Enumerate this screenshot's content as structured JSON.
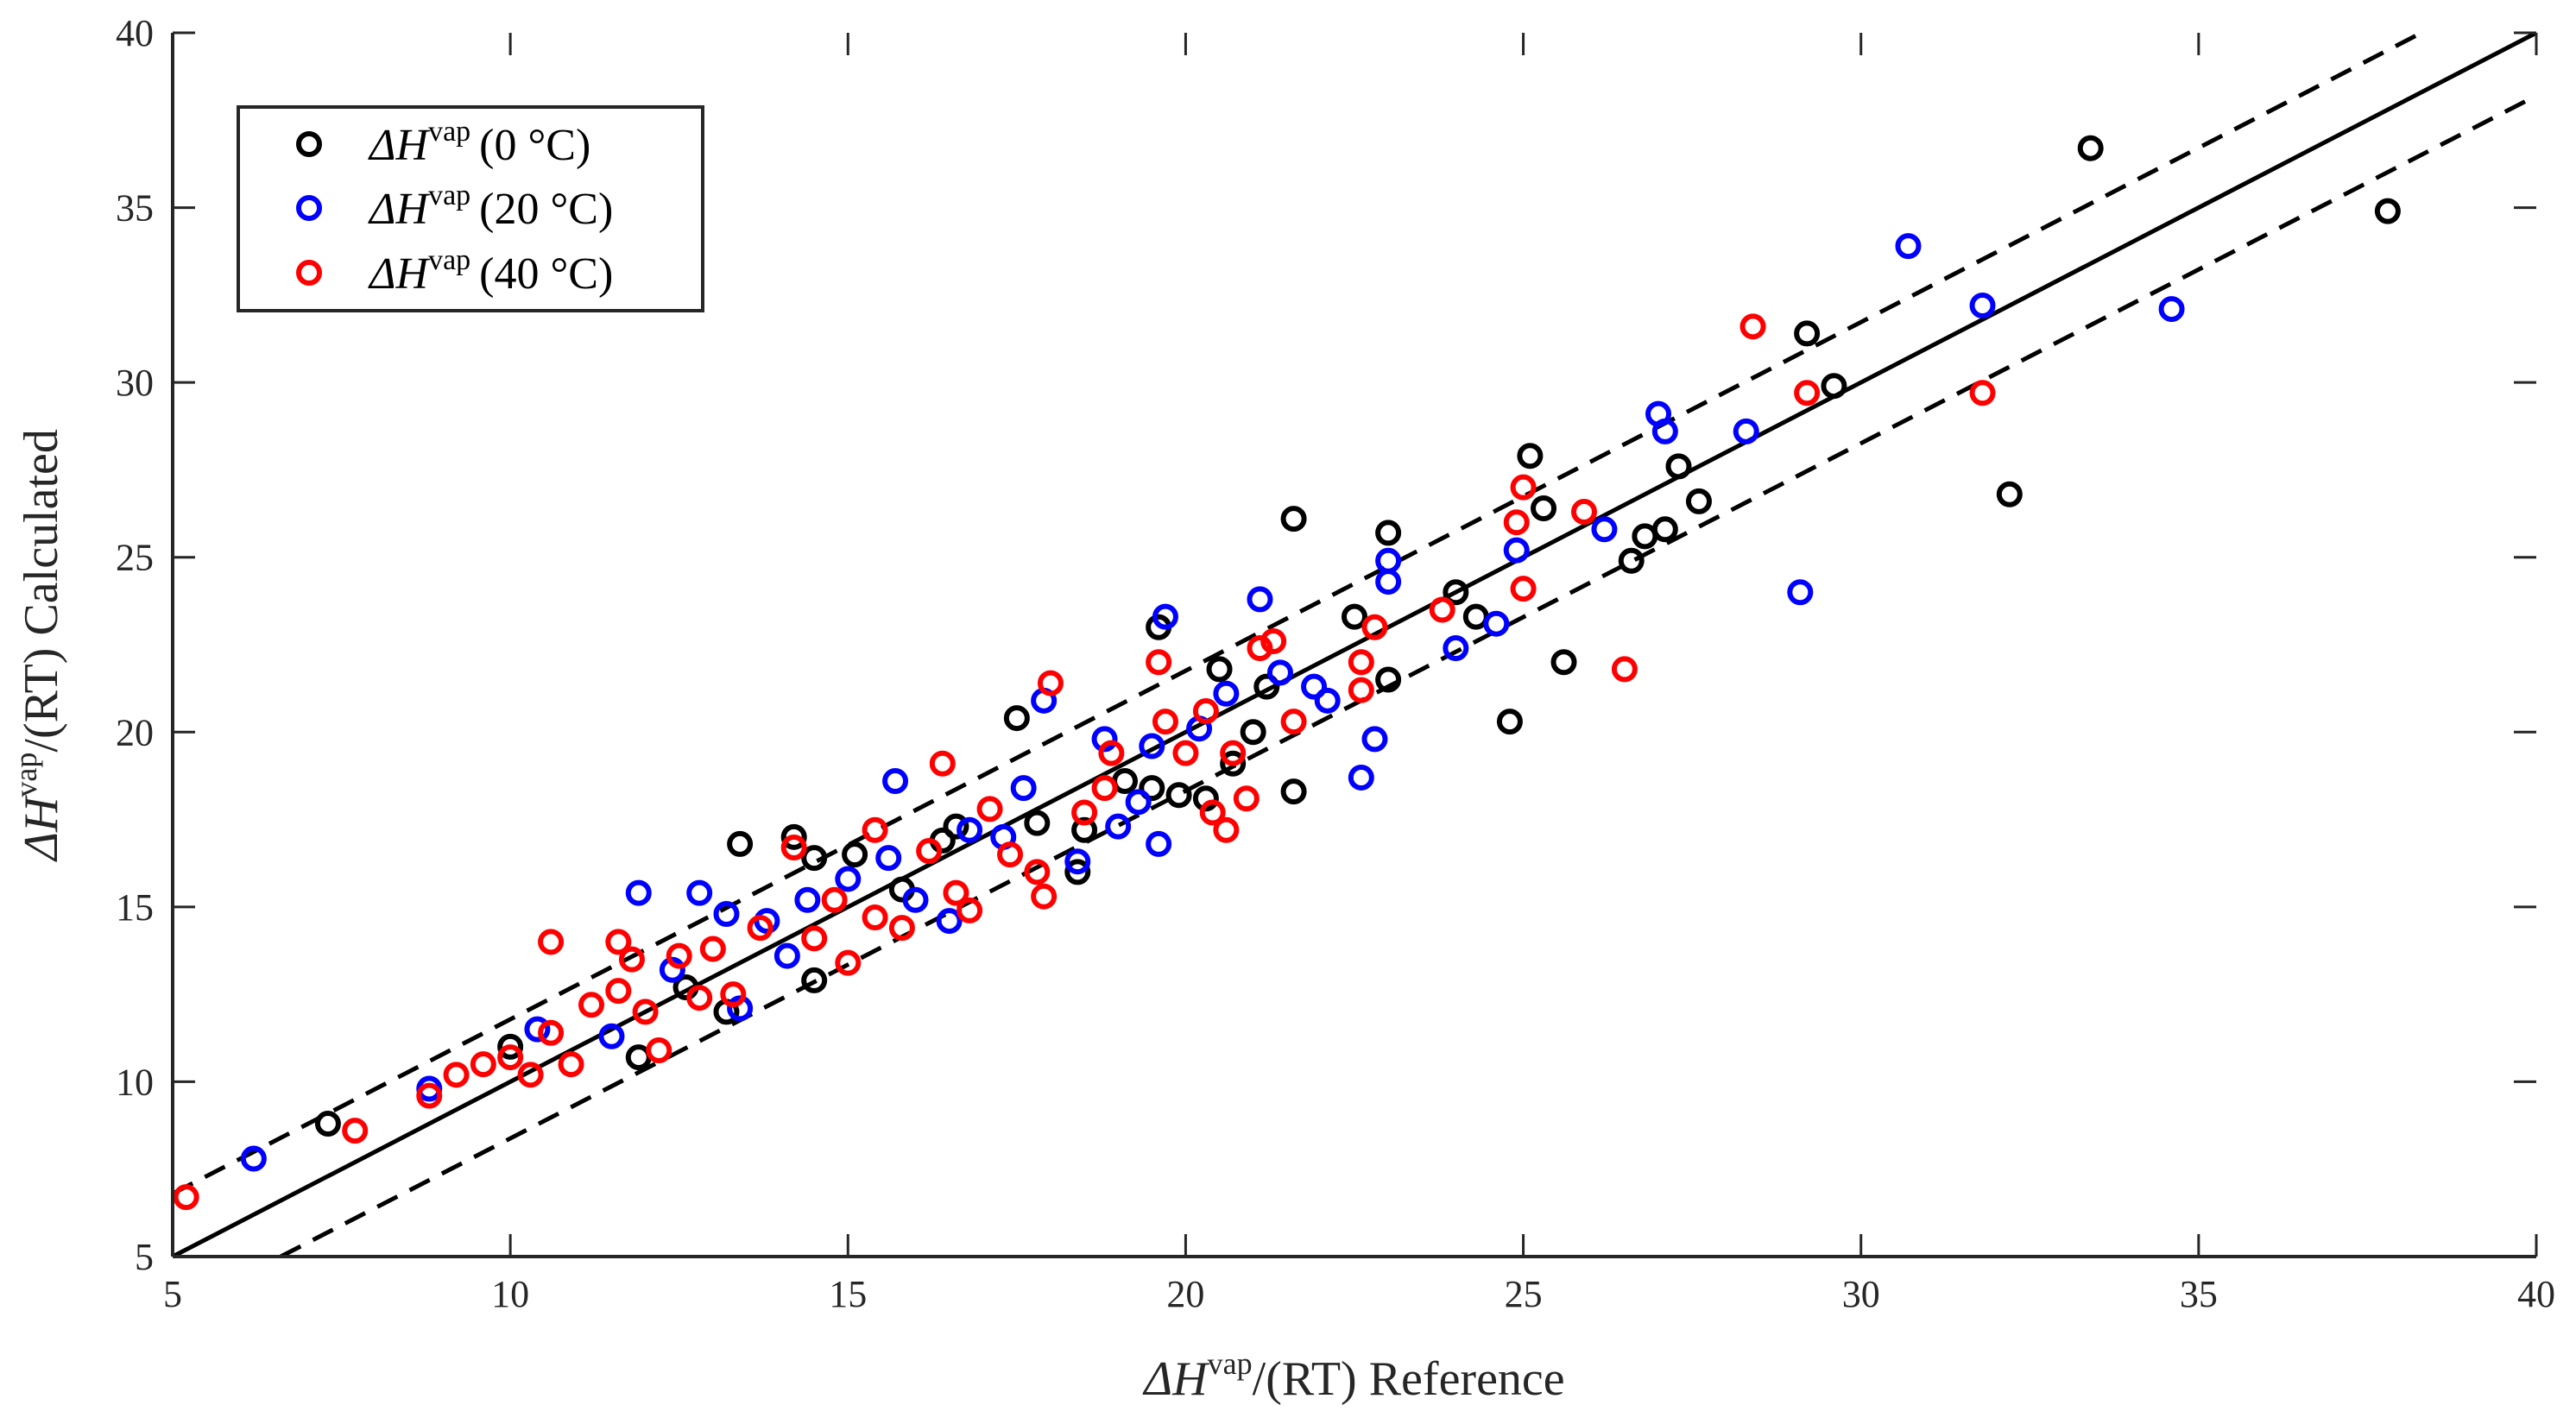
{
  "chart_data": {
    "type": "scatter",
    "title": "",
    "xlabel": {
      "prefix": "ΔH",
      "superscript": "vap",
      "suffix": "/(RT) Reference"
    },
    "ylabel": {
      "prefix": "ΔH",
      "superscript": "vap",
      "suffix": "/(RT) Calculated"
    },
    "xlim": [
      5,
      40
    ],
    "ylim": [
      5,
      40
    ],
    "xticks": [
      "5",
      "10",
      "15",
      "20",
      "25",
      "30",
      "35",
      "40"
    ],
    "yticks": [
      "5",
      "10",
      "15",
      "20",
      "25",
      "30",
      "35",
      "40"
    ],
    "grid": false,
    "legend_position": "top-left",
    "reference_lines": [
      {
        "name": "parity",
        "style": "solid",
        "color": "#000000",
        "points": [
          [
            5,
            5
          ],
          [
            40,
            40
          ]
        ]
      },
      {
        "name": "upper-bound",
        "style": "dashed",
        "color": "#000000",
        "points": [
          [
            5,
            6.8
          ],
          [
            38.3,
            40
          ]
        ]
      },
      {
        "name": "lower-bound",
        "style": "dashed",
        "color": "#000000",
        "points": [
          [
            6.6,
            5
          ],
          [
            40,
            38.2
          ]
        ]
      }
    ],
    "series": [
      {
        "name": "ΔHvap (0°C)",
        "legend": {
          "symbol": "ΔH",
          "superscript": "vap",
          "condition": "(0 °C)"
        },
        "color": "#000000",
        "points": [
          [
            7.3,
            8.8
          ],
          [
            10.0,
            11.0
          ],
          [
            11.9,
            10.7
          ],
          [
            12.6,
            12.7
          ],
          [
            13.2,
            12.0
          ],
          [
            13.4,
            16.8
          ],
          [
            14.2,
            17.0
          ],
          [
            14.5,
            12.9
          ],
          [
            14.5,
            16.4
          ],
          [
            15.1,
            16.5
          ],
          [
            15.8,
            15.5
          ],
          [
            16.4,
            16.9
          ],
          [
            16.6,
            17.3
          ],
          [
            17.5,
            20.4
          ],
          [
            17.8,
            17.4
          ],
          [
            18.4,
            16.0
          ],
          [
            18.5,
            17.2
          ],
          [
            19.1,
            18.6
          ],
          [
            19.5,
            18.4
          ],
          [
            19.6,
            23.0
          ],
          [
            19.9,
            18.2
          ],
          [
            20.3,
            18.1
          ],
          [
            20.5,
            21.8
          ],
          [
            20.7,
            19.1
          ],
          [
            21.0,
            20.0
          ],
          [
            21.2,
            21.3
          ],
          [
            21.6,
            18.3
          ],
          [
            21.6,
            26.1
          ],
          [
            22.5,
            23.3
          ],
          [
            23.0,
            25.7
          ],
          [
            23.0,
            21.5
          ],
          [
            24.0,
            24.0
          ],
          [
            24.3,
            23.3
          ],
          [
            24.8,
            20.3
          ],
          [
            25.1,
            27.9
          ],
          [
            25.3,
            26.4
          ],
          [
            25.6,
            22.0
          ],
          [
            26.6,
            24.9
          ],
          [
            26.8,
            25.6
          ],
          [
            27.1,
            25.8
          ],
          [
            27.3,
            27.6
          ],
          [
            27.6,
            26.6
          ],
          [
            29.2,
            31.4
          ],
          [
            29.6,
            29.9
          ],
          [
            32.2,
            26.8
          ],
          [
            33.4,
            36.7
          ],
          [
            37.8,
            34.9
          ]
        ]
      },
      {
        "name": "ΔHvap (20°C)",
        "legend": {
          "symbol": "ΔH",
          "superscript": "vap",
          "condition": "(20 °C)"
        },
        "color": "#0000FF",
        "points": [
          [
            6.2,
            7.8
          ],
          [
            8.8,
            9.8
          ],
          [
            10.4,
            11.5
          ],
          [
            11.5,
            11.3
          ],
          [
            11.9,
            15.4
          ],
          [
            12.4,
            13.2
          ],
          [
            12.8,
            15.4
          ],
          [
            13.2,
            14.8
          ],
          [
            13.4,
            12.1
          ],
          [
            13.8,
            14.6
          ],
          [
            14.1,
            13.6
          ],
          [
            14.4,
            15.2
          ],
          [
            15.0,
            15.8
          ],
          [
            15.6,
            16.4
          ],
          [
            15.7,
            18.6
          ],
          [
            16.0,
            15.2
          ],
          [
            16.5,
            14.6
          ],
          [
            16.8,
            17.2
          ],
          [
            17.3,
            17.0
          ],
          [
            17.6,
            18.4
          ],
          [
            17.9,
            20.9
          ],
          [
            18.4,
            16.3
          ],
          [
            18.8,
            19.8
          ],
          [
            19.0,
            17.3
          ],
          [
            19.3,
            18.0
          ],
          [
            19.5,
            19.6
          ],
          [
            19.6,
            16.8
          ],
          [
            19.7,
            23.3
          ],
          [
            20.2,
            20.1
          ],
          [
            20.6,
            21.1
          ],
          [
            21.1,
            23.8
          ],
          [
            21.4,
            21.7
          ],
          [
            21.9,
            21.3
          ],
          [
            22.1,
            20.9
          ],
          [
            22.6,
            18.7
          ],
          [
            22.8,
            19.8
          ],
          [
            23.0,
            24.3
          ],
          [
            23.0,
            24.9
          ],
          [
            24.0,
            22.4
          ],
          [
            24.6,
            23.1
          ],
          [
            24.9,
            25.2
          ],
          [
            26.2,
            25.8
          ],
          [
            27.0,
            29.1
          ],
          [
            27.1,
            28.6
          ],
          [
            28.3,
            28.6
          ],
          [
            29.1,
            24.0
          ],
          [
            30.7,
            33.9
          ],
          [
            31.8,
            32.2
          ],
          [
            34.6,
            32.1
          ]
        ]
      },
      {
        "name": "ΔHvap (40°C)",
        "legend": {
          "symbol": "ΔH",
          "superscript": "vap",
          "condition": "(40 °C)"
        },
        "color": "#FF0000",
        "points": [
          [
            5.2,
            6.7
          ],
          [
            7.7,
            8.6
          ],
          [
            8.8,
            9.6
          ],
          [
            9.2,
            10.2
          ],
          [
            9.6,
            10.5
          ],
          [
            10.0,
            10.7
          ],
          [
            10.3,
            10.2
          ],
          [
            10.6,
            14.0
          ],
          [
            10.6,
            11.4
          ],
          [
            10.9,
            10.5
          ],
          [
            11.2,
            12.2
          ],
          [
            11.6,
            12.6
          ],
          [
            11.6,
            14.0
          ],
          [
            11.8,
            13.5
          ],
          [
            12.0,
            12.0
          ],
          [
            12.2,
            10.9
          ],
          [
            12.5,
            13.6
          ],
          [
            12.8,
            12.4
          ],
          [
            13.0,
            13.8
          ],
          [
            13.3,
            12.5
          ],
          [
            13.7,
            14.4
          ],
          [
            14.2,
            16.7
          ],
          [
            14.5,
            14.1
          ],
          [
            14.8,
            15.2
          ],
          [
            15.0,
            13.4
          ],
          [
            15.4,
            17.2
          ],
          [
            15.4,
            14.7
          ],
          [
            15.8,
            14.4
          ],
          [
            16.2,
            16.6
          ],
          [
            16.4,
            19.1
          ],
          [
            16.6,
            15.4
          ],
          [
            16.8,
            14.9
          ],
          [
            17.1,
            17.8
          ],
          [
            17.4,
            16.5
          ],
          [
            17.8,
            16.0
          ],
          [
            17.9,
            15.3
          ],
          [
            18.0,
            21.4
          ],
          [
            18.5,
            17.7
          ],
          [
            18.8,
            18.4
          ],
          [
            18.9,
            19.4
          ],
          [
            19.6,
            22.0
          ],
          [
            19.7,
            20.3
          ],
          [
            20.0,
            19.4
          ],
          [
            20.3,
            20.6
          ],
          [
            20.4,
            17.7
          ],
          [
            20.6,
            17.2
          ],
          [
            20.7,
            19.4
          ],
          [
            20.9,
            18.1
          ],
          [
            21.1,
            22.4
          ],
          [
            21.3,
            22.6
          ],
          [
            21.6,
            20.3
          ],
          [
            22.6,
            22.0
          ],
          [
            22.6,
            21.2
          ],
          [
            22.8,
            23.0
          ],
          [
            23.8,
            23.5
          ],
          [
            24.9,
            26.0
          ],
          [
            25.0,
            27.0
          ],
          [
            25.0,
            24.1
          ],
          [
            25.9,
            26.3
          ],
          [
            26.5,
            21.8
          ],
          [
            28.4,
            31.6
          ],
          [
            29.2,
            29.7
          ],
          [
            31.8,
            29.7
          ]
        ]
      }
    ]
  }
}
